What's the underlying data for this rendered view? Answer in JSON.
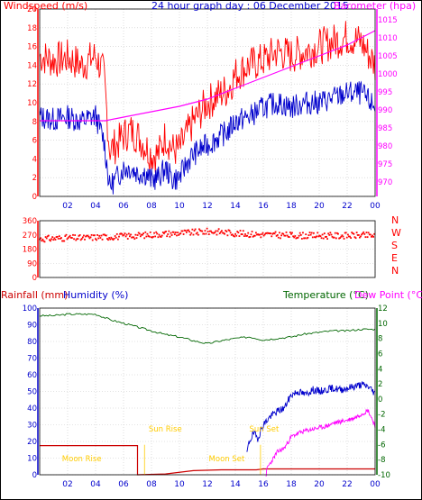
{
  "title": "24 hour graph day : 06 December 2015",
  "colors": {
    "wind": "#ff0000",
    "gust_line": "#ff0000",
    "avg_wind": "#0000cc",
    "baro": "#ff00ff",
    "dir": "#ff0000",
    "rain": "#cc0000",
    "humidity": "#0000cc",
    "temp": "#006600",
    "dew": "#ff00ff",
    "sun": "#ffcc00",
    "grid": "#c8c8c8",
    "axis_left_top": "#ff0000",
    "axis_right_top": "#ff00ff",
    "axis_left_bottom": "#0000cc",
    "axis_right_bottom": "#006600"
  },
  "chart_data": [
    {
      "type": "line",
      "title": "24 hour graph day : 06 December 2015",
      "ylabel": "Windspeed (m/s)",
      "y2label": "Barometer (hpa)",
      "x_ticks": [
        "02",
        "04",
        "06",
        "08",
        "10",
        "12",
        "14",
        "16",
        "18",
        "20",
        "22",
        "00"
      ],
      "y_ticks": [
        0,
        2,
        4,
        6,
        8,
        10,
        12,
        14,
        16,
        18,
        20
      ],
      "y2_ticks": [
        970,
        975,
        980,
        985,
        990,
        995,
        1000,
        1005,
        1010,
        1015
      ],
      "ylim": [
        0,
        20
      ],
      "y2lim": [
        966,
        1018
      ],
      "x_range_hours": [
        0,
        24
      ],
      "series": [
        {
          "key": "gust",
          "x": [
            0,
            1,
            2,
            3,
            4,
            4.6,
            5,
            5.5,
            6,
            6.5,
            7,
            7.5,
            8,
            8.5,
            9,
            9.5,
            10,
            10.5,
            11,
            11.5,
            12,
            12.5,
            13,
            13.5,
            14,
            15,
            16,
            17,
            18,
            19,
            20,
            21,
            22,
            23,
            24
          ],
          "values": [
            15,
            14.5,
            14.8,
            14,
            15,
            13,
            5,
            5.5,
            6.5,
            7,
            6.5,
            5.5,
            4.5,
            4.5,
            6.5,
            5,
            5,
            6.5,
            8,
            9,
            10,
            10.5,
            11,
            11.5,
            13,
            14,
            14.5,
            15.5,
            15,
            15.5,
            16,
            16.5,
            17,
            16.5,
            14
          ]
        },
        {
          "key": "avg",
          "x": [
            0,
            1,
            2,
            3,
            4,
            4.6,
            5,
            5.5,
            6,
            6.5,
            7,
            7.5,
            8,
            8.5,
            9,
            9.5,
            10,
            10.5,
            11,
            11.5,
            12,
            12.5,
            13,
            13.5,
            14,
            15,
            16,
            17,
            18,
            19,
            20,
            21,
            22,
            23,
            24
          ],
          "values": [
            8.5,
            8.2,
            8.5,
            8.0,
            8.6,
            6,
            1,
            2,
            3,
            3,
            2.5,
            2.5,
            1.8,
            2,
            3,
            1.8,
            2,
            3.5,
            4.5,
            5,
            5.5,
            6,
            6.5,
            7,
            8,
            8.5,
            9.5,
            10,
            9.5,
            10,
            10,
            10.5,
            11,
            11,
            9.5
          ]
        },
        {
          "key": "baro",
          "axis": "y2",
          "x": [
            0,
            4.7,
            6,
            8,
            10,
            12,
            14,
            16,
            18,
            20,
            22,
            24
          ],
          "values": [
            987,
            987,
            988,
            989.5,
            991,
            993,
            996,
            999,
            1002,
            1005,
            1008,
            1012
          ]
        }
      ]
    },
    {
      "type": "scatter",
      "ylabel": "Wind direction (deg)",
      "y_ticks": [
        0,
        90,
        180,
        270,
        360
      ],
      "compass": [
        "N",
        "W",
        "S",
        "E",
        "N"
      ],
      "ylim": [
        0,
        360
      ],
      "series": [
        {
          "key": "dir",
          "x": [
            0,
            1,
            2,
            3,
            4,
            5,
            6,
            7,
            8,
            9,
            10,
            11,
            12,
            13,
            14,
            15,
            16,
            17,
            18,
            19,
            20,
            21,
            22,
            23,
            24
          ],
          "values": [
            245,
            248,
            252,
            250,
            256,
            258,
            262,
            266,
            272,
            278,
            282,
            286,
            292,
            290,
            280,
            276,
            272,
            270,
            268,
            266,
            266,
            265,
            266,
            268,
            266
          ]
        }
      ]
    },
    {
      "type": "line",
      "ylabel": "Rainfall (mm)",
      "ylabel2": "Humidity (%)",
      "y2label": "Temperature (°C)",
      "y3label": "Dew Point (°C)",
      "y_ticks": [
        0,
        10,
        20,
        30,
        40,
        50,
        60,
        70,
        80,
        90,
        100
      ],
      "y2_ticks": [
        -10,
        -8,
        -6,
        -4,
        -2,
        0,
        2,
        4,
        6,
        8,
        10,
        12
      ],
      "ylim": [
        0,
        100
      ],
      "y2lim": [
        -10,
        12
      ],
      "annotations": [
        "Moon Rise",
        "Sun Rise",
        "Moon Set",
        "Sun Set"
      ],
      "series": [
        {
          "key": "temp",
          "axis": "y2",
          "x": [
            0,
            1,
            2,
            3,
            4,
            5,
            6,
            7,
            8,
            9,
            10,
            11,
            12,
            13,
            14,
            15,
            16,
            17,
            18,
            19,
            20,
            21,
            22,
            23,
            24
          ],
          "values": [
            11,
            11,
            11.2,
            11.2,
            11.2,
            10.5,
            10,
            9.5,
            9,
            8.5,
            8.2,
            7.7,
            7.3,
            7.7,
            8,
            8.2,
            7.8,
            8,
            8.2,
            8.6,
            8.8,
            9,
            9,
            9.2,
            9.2
          ]
        },
        {
          "key": "rain",
          "x": [
            0,
            6.5,
            6.5,
            7,
            7,
            9,
            11,
            13,
            14,
            15,
            15.5,
            16,
            18,
            20,
            22,
            24
          ],
          "values": [
            17.5,
            17.5,
            17.5,
            17.5,
            0,
            0.5,
            2.5,
            3,
            3,
            3,
            3,
            3.5,
            3.5,
            3.5,
            3.5,
            3.5
          ]
        },
        {
          "key": "humidity",
          "x": [
            13.5,
            13.8,
            14.2,
            14.5,
            15,
            15.5,
            16,
            16.5,
            17,
            17.5,
            18,
            18.5,
            19,
            19.5,
            20,
            20.5,
            21,
            21.5,
            22,
            22.5,
            23,
            23.5,
            24
          ],
          "values": [
            0,
            0,
            0,
            0,
            0,
            12,
            22,
            32,
            36,
            40,
            45,
            50,
            48,
            50,
            51,
            51,
            52,
            52,
            53,
            53,
            54,
            53,
            52
          ]
        },
        {
          "key": "humidity_main",
          "x": [
            14.8,
            15,
            15.3,
            15.6,
            16,
            16.5,
            17,
            17.5,
            18,
            18.5,
            19,
            19.5,
            20,
            20.5,
            21,
            21.5,
            22,
            22.5,
            23,
            23.5,
            24
          ],
          "values": [
            12,
            20,
            25,
            22,
            30,
            35,
            38,
            40,
            48,
            50,
            48,
            51,
            50,
            51,
            52,
            51,
            52,
            53,
            54,
            53,
            49
          ]
        },
        {
          "key": "dew",
          "axis": "y2",
          "x": [
            16.2,
            16.3,
            16.6,
            17,
            17.5,
            18,
            18.5,
            19,
            19.5,
            20,
            20.5,
            21,
            21.5,
            22,
            22.5,
            23,
            23.5,
            24
          ],
          "values": [
            -10,
            -9,
            -8.2,
            -7,
            -6.5,
            -5,
            -4.5,
            -4.2,
            -4,
            -3.8,
            -3.6,
            -3.2,
            -3,
            -2.8,
            -2.5,
            -2,
            -1.5,
            -3.5
          ]
        },
        {
          "key": "sun_marker",
          "x": [
            7.5,
            7.5,
            15.8,
            15.8
          ],
          "values": [
            18,
            0,
            18,
            0
          ]
        }
      ]
    }
  ]
}
